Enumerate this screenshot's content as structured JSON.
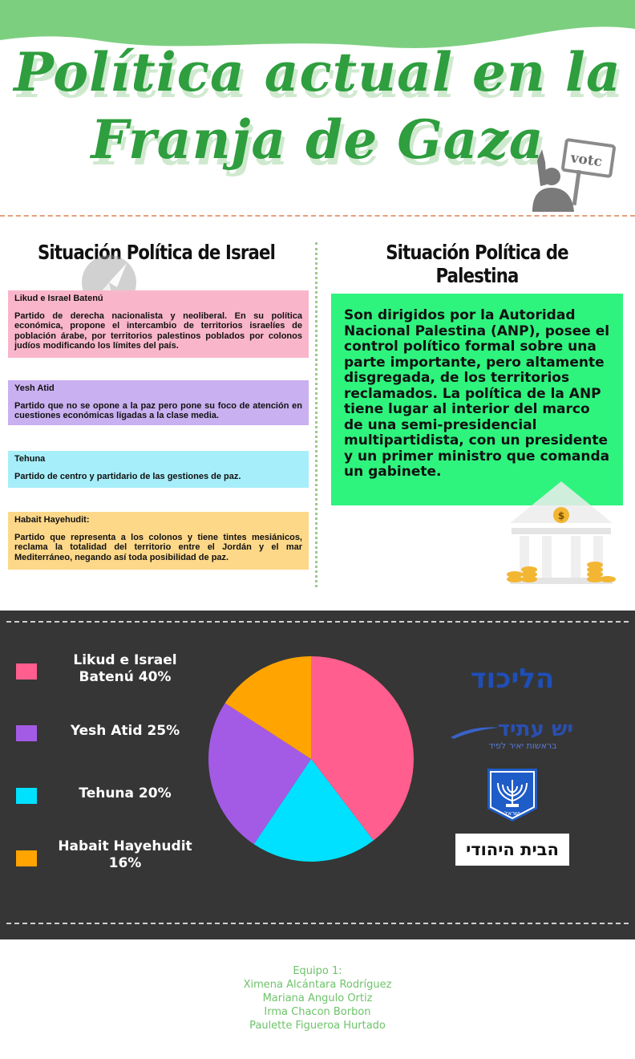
{
  "header": {
    "title_line1": "Política actual en la",
    "title_line2": "Franja de Gaza",
    "vote_sign_text": "votc"
  },
  "israel": {
    "heading": "Situación Política de Israel",
    "parties": [
      {
        "name": "Likud e Israel Batenú",
        "description": "Partido de derecha nacionalista y neoliberal. En su política económica, propone el intercambio de territorios israelíes de población árabe, por territorios palestinos poblados por colonos judíos modificando los límites del país."
      },
      {
        "name": "Yesh Atid",
        "description": "Partido que no se opone a la paz pero pone su foco de atención en cuestiones económicas ligadas a la clase media."
      },
      {
        "name": "Tehuna",
        "description": "Partido de centro y partidario de las gestiones de paz."
      },
      {
        "name": "Habait Hayehudit:",
        "description": "Partido que representa a los colonos y tiene tintes mesiánicos, reclama la totalidad del territorio entre el Jordán y el mar Mediterráneo, negando así toda posibilidad de paz."
      }
    ]
  },
  "palestine": {
    "heading": "Situación Política de Palestina",
    "text": "Son dirigidos por la Autoridad Nacional Palestina (ANP), posee el control político formal sobre una parte importante, pero altamente disgregada, de los territorios reclamados. La política de la ANP tiene lugar al interior del marco de una semi-presidencial multipartidista, con un presidente y un primer ministro que comanda un gabinete.",
    "coin_symbol": "$"
  },
  "chart_data": {
    "type": "pie",
    "title": "",
    "legend_position": "left",
    "slices": [
      {
        "label": "Likud e Israel Batenú 40%",
        "value": 40,
        "color": "#ff5e8e"
      },
      {
        "label": "Tehuna 20%",
        "value": 20,
        "color": "#00e1ff"
      },
      {
        "label": "Yesh Atid 25%",
        "value": 25,
        "color": "#a35be6"
      },
      {
        "label": "Habait Hayehudit 16%",
        "value": 16,
        "color": "#ffa400"
      }
    ]
  },
  "legend": [
    {
      "label_line1": "Likud e Israel",
      "label_line2": "Batenú 40%",
      "color": "#ff5e8e"
    },
    {
      "label_line1": "Yesh Atid 25%",
      "label_line2": "",
      "color": "#a35be6"
    },
    {
      "label_line1": "Tehuna 20%",
      "label_line2": "",
      "color": "#00e1ff"
    },
    {
      "label_line1": "Habait Hayehudit",
      "label_line2": "16%",
      "color": "#ffa400"
    }
  ],
  "logos": {
    "likud": "הליכוד",
    "yesh_atid_main": "יש עתיד",
    "yesh_atid_sub": "בראשות יאיר לפיד",
    "emblem_text": "ישראל",
    "habayit": "הבית היהודי"
  },
  "credits": {
    "team": "Equipo 1:",
    "members": [
      "Ximena Alcántara Rodríguez",
      "Mariana Angulo Ortiz",
      "Irma Chacon Borbon",
      "Paulette Figueroa Hurtado"
    ]
  },
  "colors": {
    "title_green": "#2e9e3e",
    "wave_green": "#7dcf80",
    "dark_bg": "#363636",
    "palestine_green": "#2ef47e",
    "credits_green": "#6ec36a"
  }
}
